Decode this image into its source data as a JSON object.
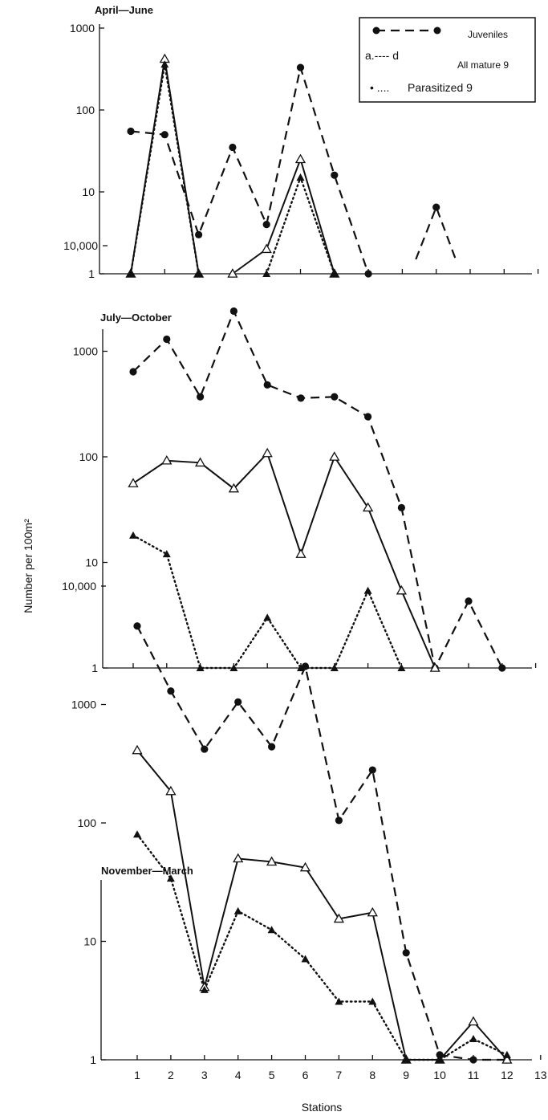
{
  "chart_data": [
    {
      "type": "line",
      "title": "April—June",
      "yscale": "log",
      "ylim": [
        1,
        1000
      ],
      "y_ticks": [
        "1",
        "10",
        "100",
        "1000"
      ],
      "legend": {
        "placement": "top-right",
        "entries": [
          {
            "text": "Juveniles",
            "prefix": ""
          },
          {
            "text": "All mature 9",
            "prefix": "a.---- d"
          },
          {
            "text": "Parasitized 9",
            "prefix": "• ...."
          }
        ]
      },
      "series": [
        {
          "key": "juveniles",
          "segments": [
            [
              [
                1,
                55
              ],
              [
                2,
                50
              ],
              [
                3,
                3
              ],
              [
                4,
                35
              ],
              [
                5,
                4
              ],
              [
                6,
                330
              ],
              [
                7,
                16
              ],
              [
                8,
                1
              ]
            ],
            [
              [
                9.4,
                1.5
              ],
              [
                10,
                6.5
              ],
              [
                10.6,
                1.4
              ]
            ]
          ]
        },
        {
          "key": "mature",
          "segments": [
            [
              [
                1,
                1
              ],
              [
                2,
                420
              ],
              [
                3,
                1
              ]
            ],
            [
              [
                4,
                1
              ],
              [
                5,
                2
              ],
              [
                6,
                25
              ],
              [
                7,
                1
              ]
            ]
          ]
        },
        {
          "key": "parasitized",
          "segments": [
            [
              [
                1,
                1
              ],
              [
                2,
                360
              ],
              [
                3,
                1
              ]
            ],
            [
              [
                5,
                1
              ],
              [
                6,
                15
              ],
              [
                7,
                1
              ]
            ]
          ]
        }
      ]
    },
    {
      "type": "line",
      "title": "July—October",
      "yscale": "log",
      "ylim": [
        1,
        10000
      ],
      "y_ticks": [
        "1",
        "10",
        "100",
        "1000",
        "10,000"
      ],
      "series": [
        {
          "key": "juveniles",
          "segments": [
            [
              [
                1,
                640
              ],
              [
                2,
                1300
              ],
              [
                3,
                370
              ],
              [
                4,
                2400
              ],
              [
                5,
                480
              ],
              [
                6,
                360
              ],
              [
                7,
                370
              ],
              [
                8,
                240
              ],
              [
                9,
                33
              ],
              [
                10,
                1
              ],
              [
                11,
                4.3
              ],
              [
                12,
                1
              ]
            ]
          ]
        },
        {
          "key": "mature",
          "segments": [
            [
              [
                1,
                56
              ],
              [
                2,
                92
              ],
              [
                3,
                88
              ],
              [
                4,
                50
              ],
              [
                5,
                108
              ],
              [
                6,
                12
              ],
              [
                7,
                100
              ],
              [
                8,
                33
              ],
              [
                9,
                5.4
              ],
              [
                10,
                1
              ]
            ]
          ]
        },
        {
          "key": "parasitized",
          "segments": [
            [
              [
                1,
                18
              ],
              [
                2,
                12
              ],
              [
                3,
                1
              ],
              [
                4,
                1
              ],
              [
                5,
                3
              ],
              [
                6,
                1
              ],
              [
                7,
                1
              ],
              [
                8,
                5.4
              ],
              [
                9,
                1
              ]
            ]
          ]
        }
      ]
    },
    {
      "type": "line",
      "title": "November—March",
      "yscale": "log",
      "ylim": [
        1,
        10000
      ],
      "y_ticks": [
        "1",
        "10",
        "100",
        "1000",
        "10,000"
      ],
      "xlabel": "Stations",
      "x_ticks": [
        "1",
        "2",
        "3",
        "4",
        "5",
        "6",
        "7",
        "8",
        "9",
        "10",
        "11",
        "12",
        "13"
      ],
      "series": [
        {
          "key": "juveniles",
          "segments": [
            [
              [
                1,
                4600
              ],
              [
                2,
                1300
              ],
              [
                3,
                420
              ],
              [
                4,
                1050
              ],
              [
                5,
                440
              ],
              [
                6,
                2100
              ],
              [
                7,
                105
              ],
              [
                8,
                280
              ],
              [
                9,
                8
              ],
              [
                10,
                1.1
              ],
              [
                11,
                1
              ],
              [
                12,
                1
              ]
            ]
          ]
        },
        {
          "key": "mature",
          "segments": [
            [
              [
                1,
                410
              ],
              [
                2,
                185
              ],
              [
                3,
                4.1
              ],
              [
                4,
                50
              ],
              [
                5,
                47
              ],
              [
                6,
                42
              ],
              [
                7,
                15.5
              ],
              [
                8,
                17.5
              ],
              [
                9,
                1
              ],
              [
                10,
                1
              ],
              [
                11,
                2.1
              ],
              [
                12,
                1
              ]
            ]
          ]
        },
        {
          "key": "parasitized",
          "segments": [
            [
              [
                1,
                80
              ],
              [
                2,
                34
              ],
              [
                3,
                3.9
              ],
              [
                4,
                18
              ],
              [
                5,
                12.5
              ],
              [
                6,
                7.1
              ],
              [
                7,
                3.1
              ],
              [
                8,
                3.1
              ],
              [
                9,
                1
              ],
              [
                10,
                1
              ],
              [
                11,
                1.5
              ],
              [
                12,
                1.1
              ]
            ]
          ]
        }
      ]
    }
  ],
  "ylabel": "Number per 100m²"
}
